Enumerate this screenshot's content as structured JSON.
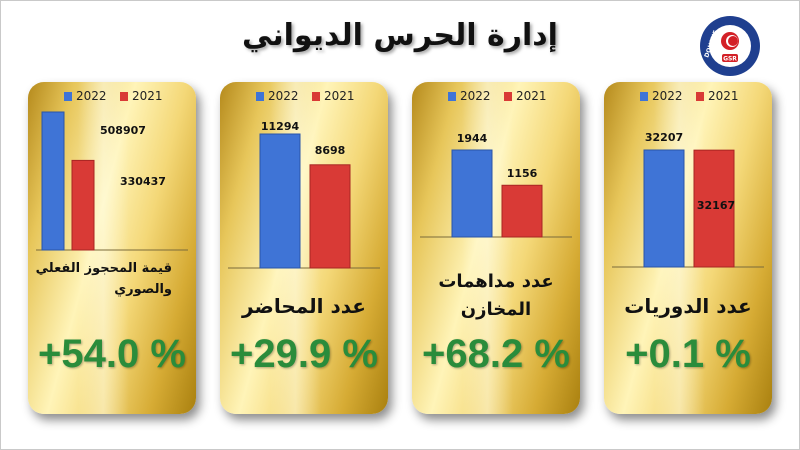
{
  "page": {
    "title": "إدارة الحرس الديواني",
    "logo_text_top": "DOUANE",
    "logo_text_bottom": "GSR"
  },
  "colors": {
    "series_2022": "#3f74d6",
    "series_2021": "#d93a36",
    "percent": "#2a8c3b"
  },
  "chart_data": [
    {
      "type": "bar",
      "label": "قيمة المحجوز الفعلي والصوري",
      "change": "+54.0 %",
      "series": [
        {
          "name": "2022",
          "values": [
            508907
          ]
        },
        {
          "name": "2021",
          "values": [
            330437
          ]
        }
      ],
      "data_labels": [
        "508907",
        "330437"
      ]
    },
    {
      "type": "bar",
      "label": "عدد المحاضر",
      "change": "+29.9 %",
      "series": [
        {
          "name": "2022",
          "values": [
            11294
          ]
        },
        {
          "name": "2021",
          "values": [
            8698
          ]
        }
      ],
      "data_labels": [
        "11294",
        "8698"
      ]
    },
    {
      "type": "bar",
      "label": "عدد مداهمات المخازن",
      "change": "+68.2 %",
      "series": [
        {
          "name": "2022",
          "values": [
            1944
          ]
        },
        {
          "name": "2021",
          "values": [
            1156
          ]
        }
      ],
      "data_labels": [
        "1944",
        "1156"
      ]
    },
    {
      "type": "bar",
      "label": "عدد الدوريات",
      "change": "+0.1 %",
      "series": [
        {
          "name": "2022",
          "values": [
            32207
          ]
        },
        {
          "name": "2021",
          "values": [
            32167
          ]
        }
      ],
      "data_labels": [
        "32207",
        "32167"
      ]
    }
  ]
}
